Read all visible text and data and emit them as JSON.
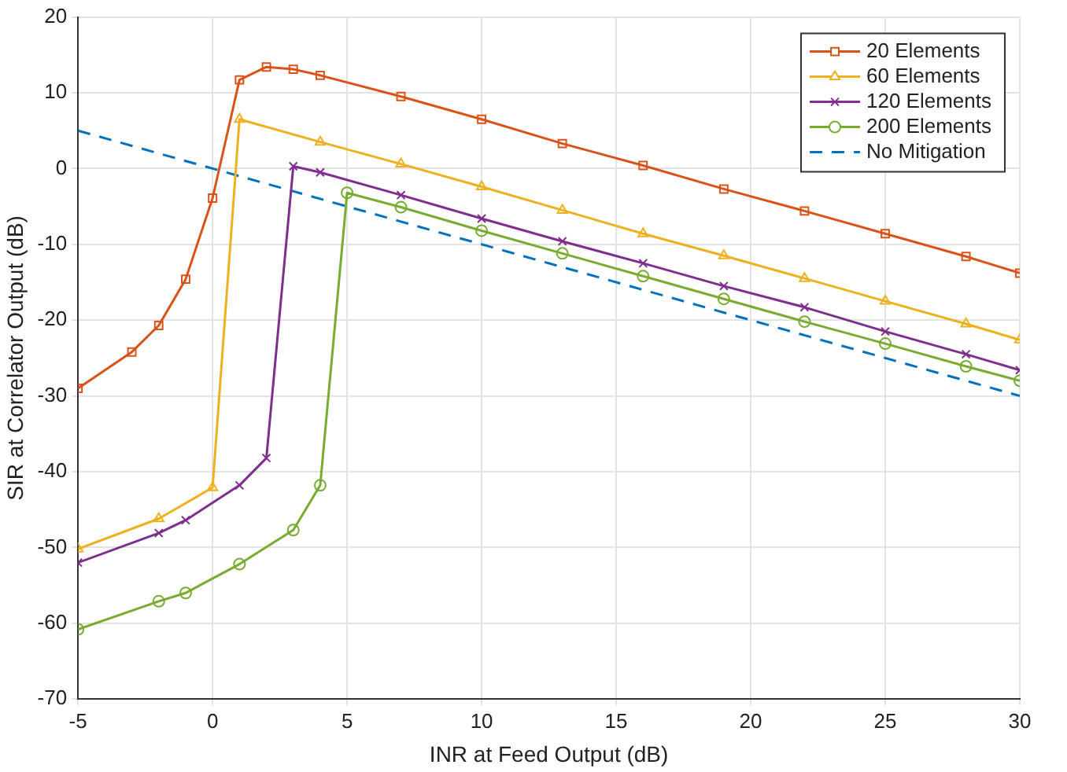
{
  "chart_data": {
    "type": "line",
    "xlabel": "INR at Feed Output (dB)",
    "ylabel": "SIR at Correlator Output (dB)",
    "xlim": [
      -5,
      30
    ],
    "xticks": [
      -5,
      0,
      5,
      10,
      15,
      20,
      25,
      30
    ],
    "ylim": [
      -70,
      20
    ],
    "yticks": [
      -70,
      -60,
      -50,
      -40,
      -30,
      -20,
      -10,
      0,
      10,
      20
    ],
    "grid": true,
    "legend": "top right",
    "line_style": "solid",
    "series": [
      {
        "name": "20 Elements",
        "color": "#d95319",
        "marker": "square",
        "x": [
          -5,
          -3,
          -2,
          -1,
          0,
          1,
          2,
          3,
          4,
          7,
          10,
          13,
          16,
          19,
          22,
          25,
          28,
          30
        ],
        "values": [
          -29,
          -24.2,
          -20.7,
          -14.6,
          -3.9,
          11.7,
          13.4,
          13.1,
          12.3,
          9.5,
          6.5,
          3.3,
          0.4,
          -2.7,
          -5.6,
          -8.6,
          -11.6,
          -13.8
        ]
      },
      {
        "name": "60 Elements",
        "color": "#edb120",
        "marker": "triangle",
        "x": [
          -5,
          -2,
          0,
          1,
          4,
          7,
          10,
          13,
          16,
          19,
          22,
          25,
          28,
          30
        ],
        "values": [
          -50.2,
          -46.2,
          -42.1,
          6.5,
          3.5,
          0.6,
          -2.4,
          -5.5,
          -8.6,
          -11.5,
          -14.5,
          -17.5,
          -20.5,
          -22.6
        ]
      },
      {
        "name": "120 Elements",
        "color": "#7e2f8e",
        "marker": "cross",
        "x": [
          -5,
          -2,
          -1,
          1,
          2,
          3,
          4,
          7,
          10,
          13,
          16,
          19,
          22,
          25,
          28,
          30
        ],
        "values": [
          -52,
          -48.1,
          -46.4,
          -41.8,
          -38.2,
          0.3,
          -0.5,
          -3.5,
          -6.6,
          -9.6,
          -12.5,
          -15.5,
          -18.3,
          -21.5,
          -24.5,
          -26.6
        ]
      },
      {
        "name": "200 Elements",
        "color": "#77ac30",
        "marker": "circle",
        "x": [
          -5,
          -2,
          -1,
          1,
          3,
          4,
          5,
          7,
          10,
          13,
          16,
          19,
          22,
          25,
          28,
          30
        ],
        "values": [
          -60.8,
          -57.1,
          -56,
          -52.2,
          -47.7,
          -41.8,
          -3.2,
          -5.1,
          -8.2,
          -11.2,
          -14.2,
          -17.2,
          -20.2,
          -23.1,
          -26.1,
          -28
        ]
      },
      {
        "name": "No Mitigation",
        "color": "#0072bd",
        "marker": "none",
        "line_style": "dashed",
        "x": [
          -5,
          30
        ],
        "values": [
          5,
          -30
        ]
      }
    ]
  }
}
